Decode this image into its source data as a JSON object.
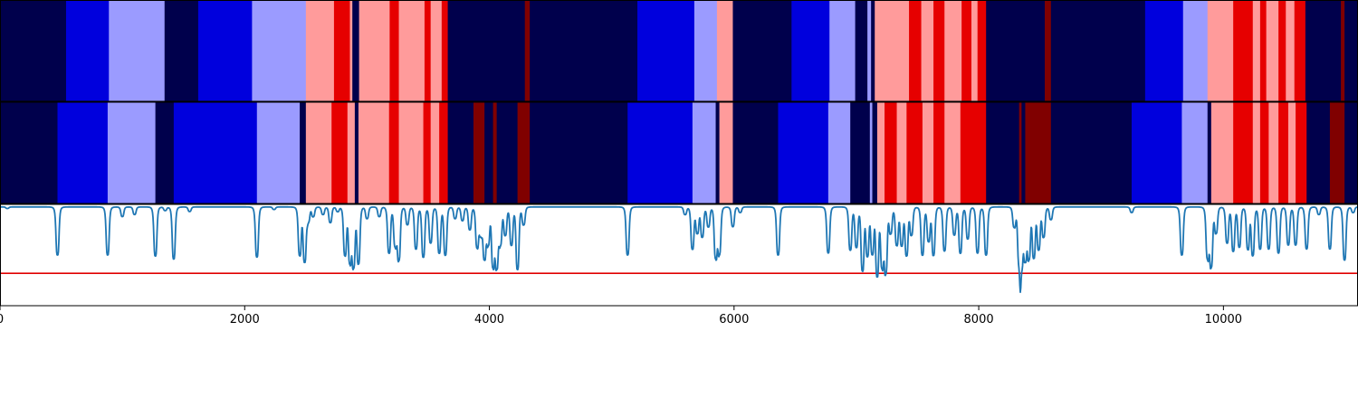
{
  "chart_data": [
    {
      "type": "heatmap",
      "xlim": [
        0,
        11100
      ],
      "palette": {
        "dark_navy": "#00004c",
        "blue": "#0000dd",
        "light_blue": "#9b9bff",
        "light_red": "#ff9b9b",
        "red": "#e60000",
        "dark_red": "#800000"
      },
      "segments": [
        [
          0,
          540,
          "dark_navy"
        ],
        [
          540,
          890,
          "blue"
        ],
        [
          890,
          1345,
          "light_blue"
        ],
        [
          1345,
          1620,
          "dark_navy"
        ],
        [
          1620,
          2060,
          "blue"
        ],
        [
          2060,
          2500,
          "light_blue"
        ],
        [
          2500,
          2730,
          "light_red"
        ],
        [
          2730,
          2860,
          "red"
        ],
        [
          2860,
          2880,
          "light_red"
        ],
        [
          2880,
          2935,
          "dark_navy"
        ],
        [
          2935,
          3185,
          "light_red"
        ],
        [
          3185,
          3260,
          "red"
        ],
        [
          3260,
          3470,
          "light_red"
        ],
        [
          3470,
          3520,
          "red"
        ],
        [
          3520,
          3610,
          "light_red"
        ],
        [
          3610,
          3660,
          "red"
        ],
        [
          3660,
          4290,
          "dark_navy"
        ],
        [
          4290,
          4330,
          "dark_red"
        ],
        [
          4330,
          5210,
          "dark_navy"
        ],
        [
          5210,
          5675,
          "blue"
        ],
        [
          5675,
          5860,
          "light_blue"
        ],
        [
          5860,
          5990,
          "light_red"
        ],
        [
          5990,
          6470,
          "dark_navy"
        ],
        [
          6470,
          6780,
          "blue"
        ],
        [
          6780,
          6990,
          "light_blue"
        ],
        [
          6990,
          7090,
          "dark_navy"
        ],
        [
          7090,
          7120,
          "light_blue"
        ],
        [
          7120,
          7150,
          "dark_navy"
        ],
        [
          7150,
          7430,
          "light_red"
        ],
        [
          7430,
          7530,
          "red"
        ],
        [
          7530,
          7630,
          "light_red"
        ],
        [
          7630,
          7720,
          "red"
        ],
        [
          7720,
          7860,
          "light_red"
        ],
        [
          7860,
          7940,
          "red"
        ],
        [
          7940,
          7990,
          "light_red"
        ],
        [
          7990,
          8060,
          "red"
        ],
        [
          8060,
          8540,
          "dark_navy"
        ],
        [
          8540,
          8590,
          "dark_red"
        ],
        [
          8590,
          9360,
          "dark_navy"
        ],
        [
          9360,
          9670,
          "blue"
        ],
        [
          9670,
          9870,
          "light_blue"
        ],
        [
          9870,
          10080,
          "light_red"
        ],
        [
          10080,
          10240,
          "red"
        ],
        [
          10240,
          10300,
          "light_red"
        ],
        [
          10300,
          10350,
          "red"
        ],
        [
          10350,
          10450,
          "light_red"
        ],
        [
          10450,
          10510,
          "red"
        ],
        [
          10510,
          10580,
          "light_red"
        ],
        [
          10580,
          10670,
          "red"
        ],
        [
          10670,
          10960,
          "dark_navy"
        ],
        [
          10960,
          10990,
          "dark_red"
        ],
        [
          10990,
          11100,
          "dark_navy"
        ]
      ]
    },
    {
      "type": "heatmap",
      "xlim": [
        0,
        11100
      ],
      "segments": [
        [
          0,
          470,
          "dark_navy"
        ],
        [
          470,
          880,
          "blue"
        ],
        [
          880,
          1270,
          "light_blue"
        ],
        [
          1270,
          1420,
          "dark_navy"
        ],
        [
          1420,
          2100,
          "blue"
        ],
        [
          2100,
          2450,
          "light_blue"
        ],
        [
          2450,
          2500,
          "dark_navy"
        ],
        [
          2500,
          2710,
          "light_red"
        ],
        [
          2710,
          2840,
          "red"
        ],
        [
          2840,
          2900,
          "light_red"
        ],
        [
          2900,
          2930,
          "dark_navy"
        ],
        [
          2930,
          3180,
          "light_red"
        ],
        [
          3180,
          3260,
          "red"
        ],
        [
          3260,
          3460,
          "light_red"
        ],
        [
          3460,
          3520,
          "red"
        ],
        [
          3520,
          3590,
          "light_red"
        ],
        [
          3590,
          3660,
          "red"
        ],
        [
          3660,
          3870,
          "dark_navy"
        ],
        [
          3870,
          3960,
          "dark_red"
        ],
        [
          3960,
          4030,
          "dark_navy"
        ],
        [
          4030,
          4060,
          "dark_red"
        ],
        [
          4060,
          4230,
          "dark_navy"
        ],
        [
          4230,
          4330,
          "dark_red"
        ],
        [
          4330,
          5130,
          "dark_navy"
        ],
        [
          5130,
          5660,
          "blue"
        ],
        [
          5660,
          5850,
          "light_blue"
        ],
        [
          5850,
          5880,
          "dark_navy"
        ],
        [
          5880,
          5990,
          "light_red"
        ],
        [
          5990,
          6360,
          "dark_navy"
        ],
        [
          6360,
          6770,
          "blue"
        ],
        [
          6770,
          6950,
          "light_blue"
        ],
        [
          6950,
          7110,
          "dark_navy"
        ],
        [
          7110,
          7130,
          "light_blue"
        ],
        [
          7130,
          7170,
          "dark_navy"
        ],
        [
          7170,
          7230,
          "light_red"
        ],
        [
          7230,
          7330,
          "red"
        ],
        [
          7330,
          7410,
          "light_red"
        ],
        [
          7410,
          7540,
          "red"
        ],
        [
          7540,
          7630,
          "light_red"
        ],
        [
          7630,
          7720,
          "red"
        ],
        [
          7720,
          7850,
          "light_red"
        ],
        [
          7850,
          8060,
          "red"
        ],
        [
          8060,
          8330,
          "dark_navy"
        ],
        [
          8330,
          8350,
          "dark_red"
        ],
        [
          8350,
          8380,
          "dark_navy"
        ],
        [
          8380,
          8590,
          "dark_red"
        ],
        [
          8590,
          9250,
          "dark_navy"
        ],
        [
          9250,
          9660,
          "blue"
        ],
        [
          9660,
          9870,
          "light_blue"
        ],
        [
          9870,
          9900,
          "dark_navy"
        ],
        [
          9900,
          10080,
          "light_red"
        ],
        [
          10080,
          10240,
          "red"
        ],
        [
          10240,
          10300,
          "light_red"
        ],
        [
          10300,
          10370,
          "red"
        ],
        [
          10370,
          10450,
          "light_red"
        ],
        [
          10450,
          10530,
          "red"
        ],
        [
          10530,
          10590,
          "light_red"
        ],
        [
          10590,
          10680,
          "red"
        ],
        [
          10680,
          10870,
          "dark_navy"
        ],
        [
          10870,
          10990,
          "dark_red"
        ],
        [
          10990,
          11100,
          "dark_navy"
        ]
      ]
    },
    {
      "type": "line",
      "xlim": [
        0,
        11100
      ],
      "ylim": [
        0,
        1
      ],
      "line_color": "#1f77b4",
      "threshold": 0.32,
      "threshold_color": "#e00000",
      "x_ticks": [
        0,
        2000,
        4000,
        6000,
        8000,
        10000
      ],
      "x_tick_labels": [
        "0",
        "2000",
        "4000",
        "6000",
        "8000",
        "10000"
      ],
      "baseline": 0.975,
      "dips": [
        [
          60,
          0.96
        ],
        [
          470,
          0.5
        ],
        [
          880,
          0.5
        ],
        [
          1000,
          0.88
        ],
        [
          1100,
          0.9
        ],
        [
          1270,
          0.49
        ],
        [
          1350,
          0.94
        ],
        [
          1420,
          0.46
        ],
        [
          1550,
          0.93
        ],
        [
          2100,
          0.48
        ],
        [
          2240,
          0.95
        ],
        [
          2450,
          0.5
        ],
        [
          2490,
          0.44
        ],
        [
          2520,
          0.84
        ],
        [
          2560,
          0.88
        ],
        [
          2640,
          0.9
        ],
        [
          2700,
          0.82
        ],
        [
          2760,
          0.93
        ],
        [
          2820,
          0.5
        ],
        [
          2860,
          0.44
        ],
        [
          2890,
          0.4
        ],
        [
          2930,
          0.42
        ],
        [
          3000,
          0.86
        ],
        [
          3100,
          0.88
        ],
        [
          3180,
          0.52
        ],
        [
          3230,
          0.6
        ],
        [
          3260,
          0.46
        ],
        [
          3330,
          0.8
        ],
        [
          3400,
          0.56
        ],
        [
          3460,
          0.48
        ],
        [
          3520,
          0.62
        ],
        [
          3590,
          0.52
        ],
        [
          3640,
          0.5
        ],
        [
          3720,
          0.86
        ],
        [
          3780,
          0.84
        ],
        [
          3840,
          0.75
        ],
        [
          3900,
          0.58
        ],
        [
          3930,
          0.72
        ],
        [
          3960,
          0.48
        ],
        [
          3990,
          0.62
        ],
        [
          4030,
          0.4
        ],
        [
          4060,
          0.4
        ],
        [
          4090,
          0.62
        ],
        [
          4130,
          0.7
        ],
        [
          4180,
          0.6
        ],
        [
          4230,
          0.36
        ],
        [
          4280,
          0.8
        ],
        [
          5130,
          0.5
        ],
        [
          5600,
          0.9
        ],
        [
          5660,
          0.56
        ],
        [
          5700,
          0.72
        ],
        [
          5740,
          0.68
        ],
        [
          5790,
          0.78
        ],
        [
          5850,
          0.48
        ],
        [
          5880,
          0.52
        ],
        [
          5990,
          0.78
        ],
        [
          6050,
          0.92
        ],
        [
          6360,
          0.5
        ],
        [
          6770,
          0.52
        ],
        [
          6950,
          0.55
        ],
        [
          7000,
          0.58
        ],
        [
          7050,
          0.35
        ],
        [
          7090,
          0.5
        ],
        [
          7130,
          0.52
        ],
        [
          7170,
          0.3
        ],
        [
          7210,
          0.4
        ],
        [
          7240,
          0.34
        ],
        [
          7280,
          0.72
        ],
        [
          7330,
          0.6
        ],
        [
          7370,
          0.6
        ],
        [
          7410,
          0.5
        ],
        [
          7450,
          0.7
        ],
        [
          7540,
          0.5
        ],
        [
          7590,
          0.64
        ],
        [
          7630,
          0.5
        ],
        [
          7720,
          0.54
        ],
        [
          7800,
          0.7
        ],
        [
          7850,
          0.52
        ],
        [
          7910,
          0.66
        ],
        [
          7990,
          0.52
        ],
        [
          8060,
          0.5
        ],
        [
          8290,
          0.78
        ],
        [
          8330,
          0.46
        ],
        [
          8350,
          0.44
        ],
        [
          8380,
          0.48
        ],
        [
          8410,
          0.48
        ],
        [
          8450,
          0.48
        ],
        [
          8490,
          0.56
        ],
        [
          8530,
          0.68
        ],
        [
          8590,
          0.85
        ],
        [
          9250,
          0.92
        ],
        [
          9660,
          0.5
        ],
        [
          9870,
          0.48
        ],
        [
          9900,
          0.4
        ],
        [
          9940,
          0.72
        ],
        [
          10030,
          0.62
        ],
        [
          10080,
          0.54
        ],
        [
          10130,
          0.58
        ],
        [
          10200,
          0.56
        ],
        [
          10240,
          0.5
        ],
        [
          10300,
          0.56
        ],
        [
          10370,
          0.56
        ],
        [
          10450,
          0.52
        ],
        [
          10530,
          0.6
        ],
        [
          10590,
          0.6
        ],
        [
          10680,
          0.56
        ],
        [
          10780,
          0.9
        ],
        [
          10870,
          0.56
        ],
        [
          10990,
          0.45
        ],
        [
          11060,
          0.92
        ]
      ]
    }
  ]
}
